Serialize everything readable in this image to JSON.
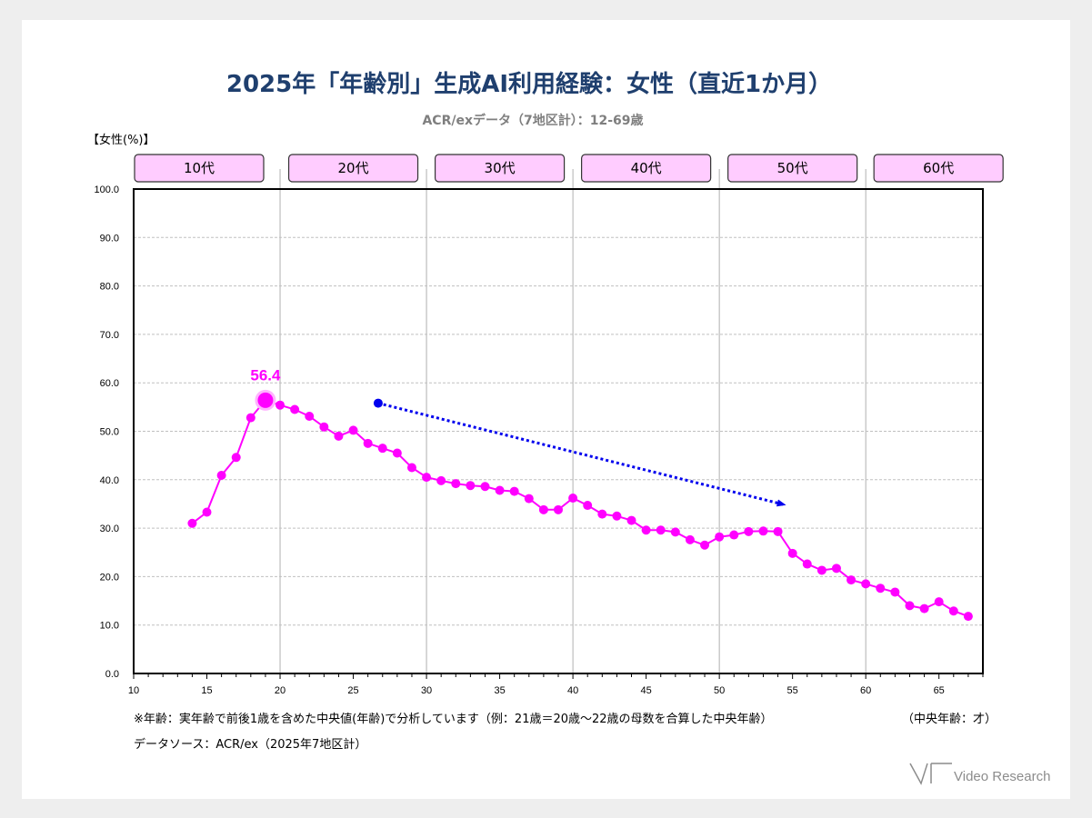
{
  "colors": {
    "series": "#ff00ff",
    "band_fill": "#ffccff",
    "title": "#1f3f6e",
    "subtitle": "#7f7f7f",
    "arrow": "#0000ee",
    "grid": "#c0c0c0"
  },
  "notes": {
    "footnote": "※年齢：実年齢で前後1歳を含めた中央値(年齢)で分析しています（例：21歳＝20歳～22歳の母数を合算した中央年齢）",
    "unit_note": "（中央年齢：才）",
    "source": "データソース：ACR/ex（2025年7地区計）"
  },
  "logo": {
    "text": "Video Research",
    "icon": "vr-logo-icon"
  },
  "chart_data": {
    "type": "line",
    "title": "2025年「年齢別」生成AI利用経験：女性（直近1か月）",
    "subtitle": "ACR/exデータ（7地区計）：12-69歳",
    "ylabel": "【女性(%)】",
    "xlabel": "",
    "xlim": [
      10,
      68
    ],
    "ylim": [
      0,
      100
    ],
    "xticks": [
      10,
      15,
      20,
      25,
      30,
      35,
      40,
      45,
      50,
      55,
      60,
      65
    ],
    "yticks": [
      "0.0",
      "10.0",
      "20.0",
      "30.0",
      "40.0",
      "50.0",
      "60.0",
      "70.0",
      "80.0",
      "90.0",
      "100.0"
    ],
    "grid": true,
    "legend": "none",
    "age_bands": [
      {
        "label": "10代",
        "start": 10,
        "end": 20
      },
      {
        "label": "20代",
        "start": 20,
        "end": 30
      },
      {
        "label": "30代",
        "start": 30,
        "end": 40
      },
      {
        "label": "40代",
        "start": 40,
        "end": 50
      },
      {
        "label": "50代",
        "start": 50,
        "end": 60
      },
      {
        "label": "60代",
        "start": 60,
        "end": 68
      }
    ],
    "series": [
      {
        "x": [
          14,
          15,
          16,
          17,
          18,
          19,
          20,
          21,
          22,
          23,
          24,
          25,
          26,
          27,
          28,
          29,
          30,
          31,
          32,
          33,
          34,
          35,
          36,
          37,
          38,
          39,
          40,
          41,
          42,
          43,
          44,
          45,
          46,
          47,
          48,
          49,
          50,
          51,
          52,
          53,
          54,
          55,
          56,
          57,
          58,
          59,
          60,
          61,
          62,
          63,
          64,
          65,
          66,
          67
        ],
        "values": [
          31.0,
          33.3,
          40.9,
          44.6,
          52.8,
          56.4,
          55.4,
          54.5,
          53.1,
          50.9,
          49.0,
          50.2,
          47.5,
          46.5,
          45.5,
          42.5,
          40.5,
          39.8,
          39.2,
          38.8,
          38.6,
          37.8,
          37.6,
          36.1,
          33.8,
          33.8,
          36.2,
          34.7,
          32.9,
          32.5,
          31.6,
          29.6,
          29.6,
          29.2,
          27.6,
          26.5,
          28.2,
          28.6,
          29.3,
          29.4,
          29.3,
          24.8,
          22.6,
          21.3,
          21.7,
          19.3,
          18.5,
          17.6,
          16.8,
          14.0,
          13.4,
          14.8,
          12.9,
          11.8
        ]
      }
    ],
    "annotations": {
      "peak": {
        "x": 19,
        "y": 56.4,
        "label": "56.4"
      },
      "trend_arrow": {
        "x_start": 26.7,
        "y_start": 55.8,
        "x_end": 54.5,
        "y_end": 34.8
      }
    }
  }
}
